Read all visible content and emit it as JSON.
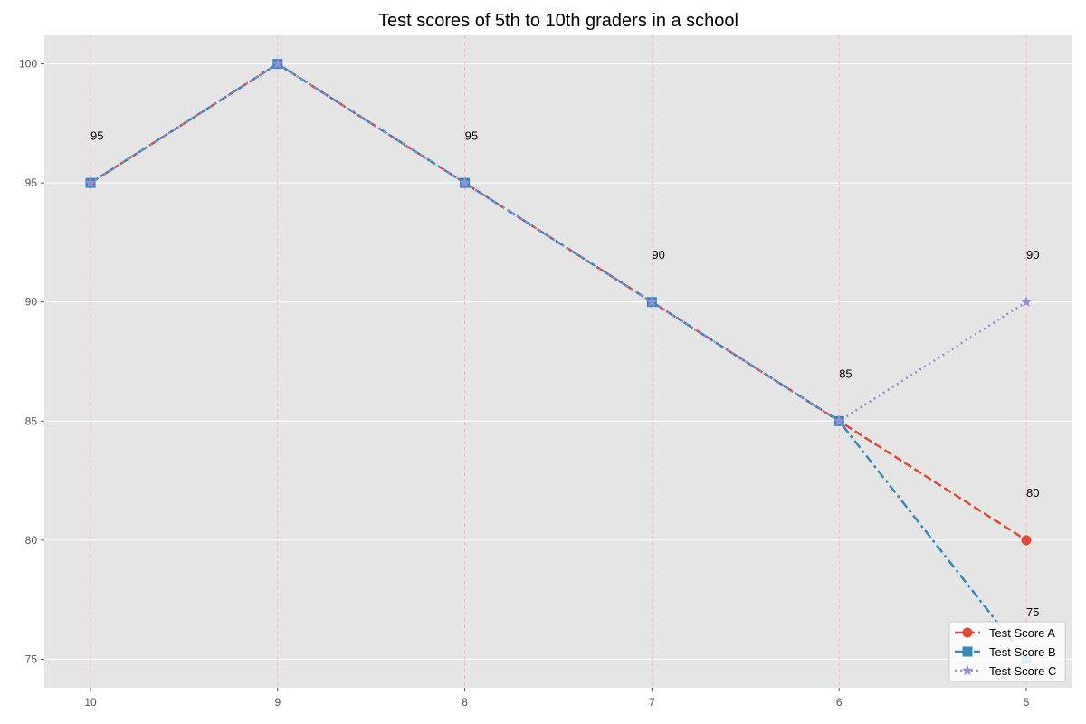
{
  "chart_data": {
    "type": "line",
    "title": "Test scores of 5th to 10th graders in a school",
    "xlabel": "",
    "ylabel": "",
    "categories": [
      "10",
      "9",
      "8",
      "7",
      "6",
      "5"
    ],
    "ylim": [
      73.8,
      101.2
    ],
    "yticks": [
      75,
      80,
      85,
      90,
      95,
      100
    ],
    "grid": true,
    "legend_position": "bottom-right",
    "series": [
      {
        "name": "Test Score A",
        "values": [
          95,
          100,
          95,
          90,
          85,
          80
        ],
        "color": "#E24A33",
        "linestyle": "dashed",
        "marker": "circle"
      },
      {
        "name": "Test Score B",
        "values": [
          95,
          100,
          95,
          90,
          85,
          75
        ],
        "color": "#348ABD",
        "linestyle": "dashdot",
        "marker": "square"
      },
      {
        "name": "Test Score C",
        "values": [
          95,
          100,
          95,
          90,
          85,
          90
        ],
        "color": "#988ED5",
        "linestyle": "dotted",
        "marker": "star"
      }
    ],
    "annotations": [
      {
        "category": "10",
        "text": "95"
      },
      {
        "category": "8",
        "text": "95"
      },
      {
        "category": "7",
        "text": "90"
      },
      {
        "category": "6",
        "text": "85"
      },
      {
        "category": "5",
        "text": "80"
      },
      {
        "category": "5",
        "text": "75"
      },
      {
        "category": "5",
        "text": "90"
      }
    ],
    "background_color": "#E5E5E5",
    "vline_color": "#FFB6C1"
  }
}
